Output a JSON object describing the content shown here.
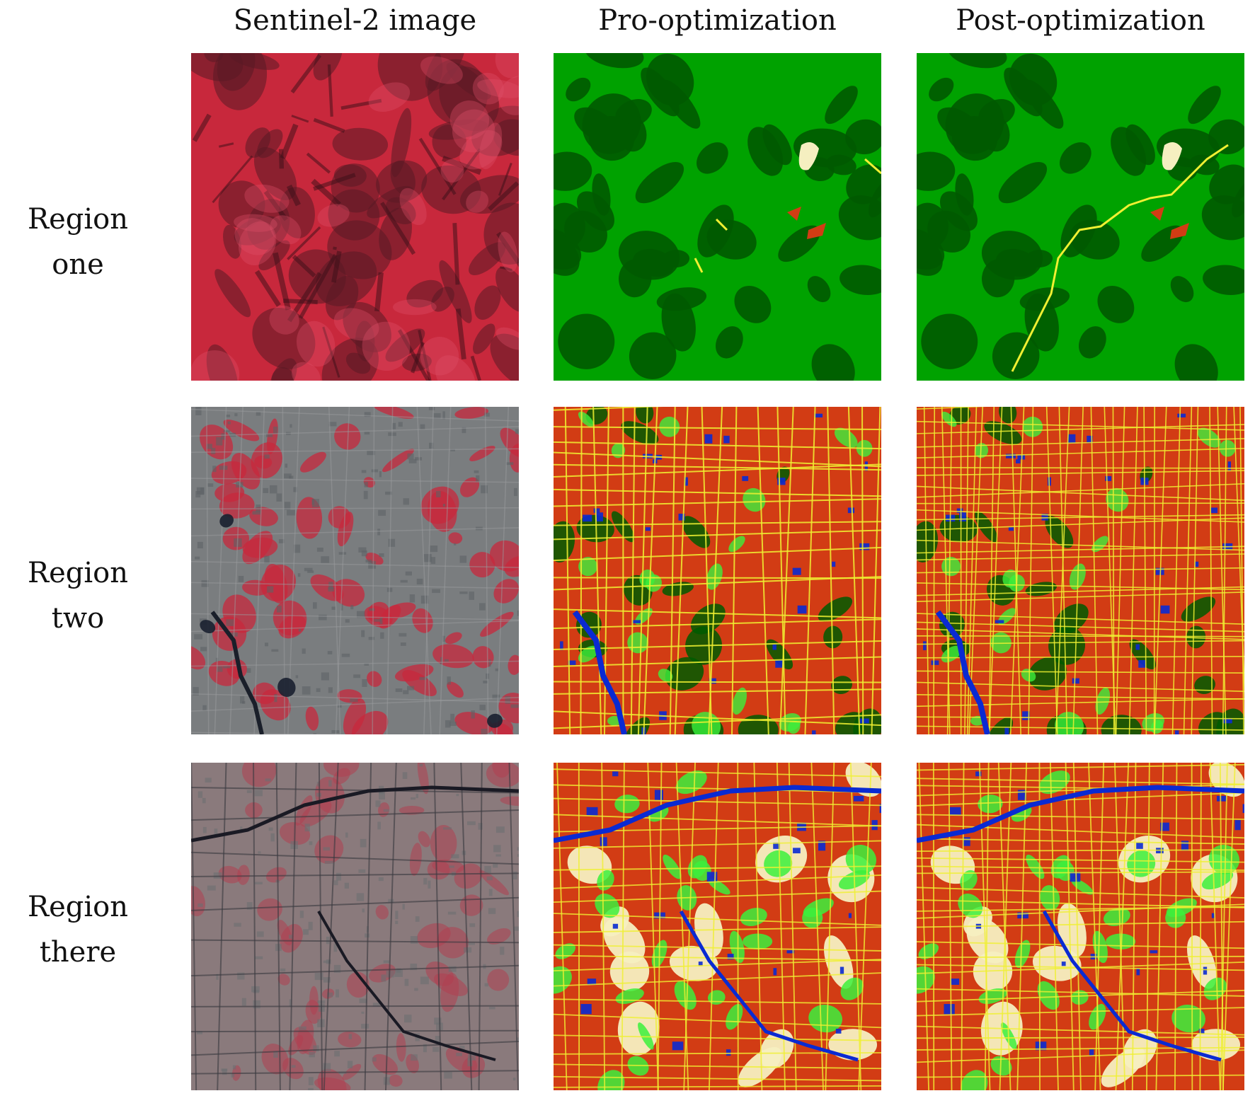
{
  "columns": [
    "Sentinel-2 image",
    "Pro-optimization",
    "Post-optimization"
  ],
  "rows": [
    {
      "label_lines": [
        "Region one"
      ]
    },
    {
      "label_lines": [
        "Region two"
      ]
    },
    {
      "label_lines": [
        "Region",
        "there"
      ]
    }
  ],
  "colors": {
    "false_color_red": "#c8283c",
    "false_color_dark": "#5a1a24",
    "false_color_gray": "#7a7d7f",
    "forest": "#00a200",
    "dense_forest": "#005a00",
    "grass": "#3cf03c",
    "impervious": "#d23c14",
    "road": "#f0f032",
    "water": "#0a2ad2",
    "bare": "#f5efc0"
  }
}
